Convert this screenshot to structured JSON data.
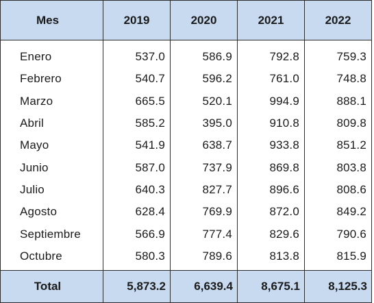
{
  "table": {
    "headers": [
      "Mes",
      "2019",
      "2020",
      "2021",
      "2022"
    ],
    "rows": [
      {
        "mes": "Enero",
        "values": [
          "537.0",
          "586.9",
          "792.8",
          "759.3"
        ]
      },
      {
        "mes": "Febrero",
        "values": [
          "540.7",
          "596.2",
          "761.0",
          "748.8"
        ]
      },
      {
        "mes": "Marzo",
        "values": [
          "665.5",
          "520.1",
          "994.9",
          "888.1"
        ]
      },
      {
        "mes": "Abril",
        "values": [
          "585.2",
          "395.0",
          "910.8",
          "809.8"
        ]
      },
      {
        "mes": "Mayo",
        "values": [
          "541.9",
          "638.7",
          "933.8",
          "851.2"
        ]
      },
      {
        "mes": "Junio",
        "values": [
          "587.0",
          "737.9",
          "869.8",
          "803.8"
        ]
      },
      {
        "mes": "Julio",
        "values": [
          "640.3",
          "827.7",
          "896.6",
          "808.6"
        ]
      },
      {
        "mes": "Agosto",
        "values": [
          "628.4",
          "769.9",
          "872.0",
          "849.2"
        ]
      },
      {
        "mes": "Septiembre",
        "values": [
          "566.9",
          "777.4",
          "829.6",
          "790.6"
        ]
      },
      {
        "mes": "Octubre",
        "values": [
          "580.3",
          "789.6",
          "813.8",
          "815.9"
        ]
      }
    ],
    "total": {
      "label": "Total",
      "values": [
        "5,873.2",
        "6,639.4",
        "8,675.1",
        "8,125.3"
      ]
    }
  },
  "colors": {
    "header_bg": "#c7daf0",
    "border": "#2b2b2b",
    "text": "#1a1a1a"
  }
}
